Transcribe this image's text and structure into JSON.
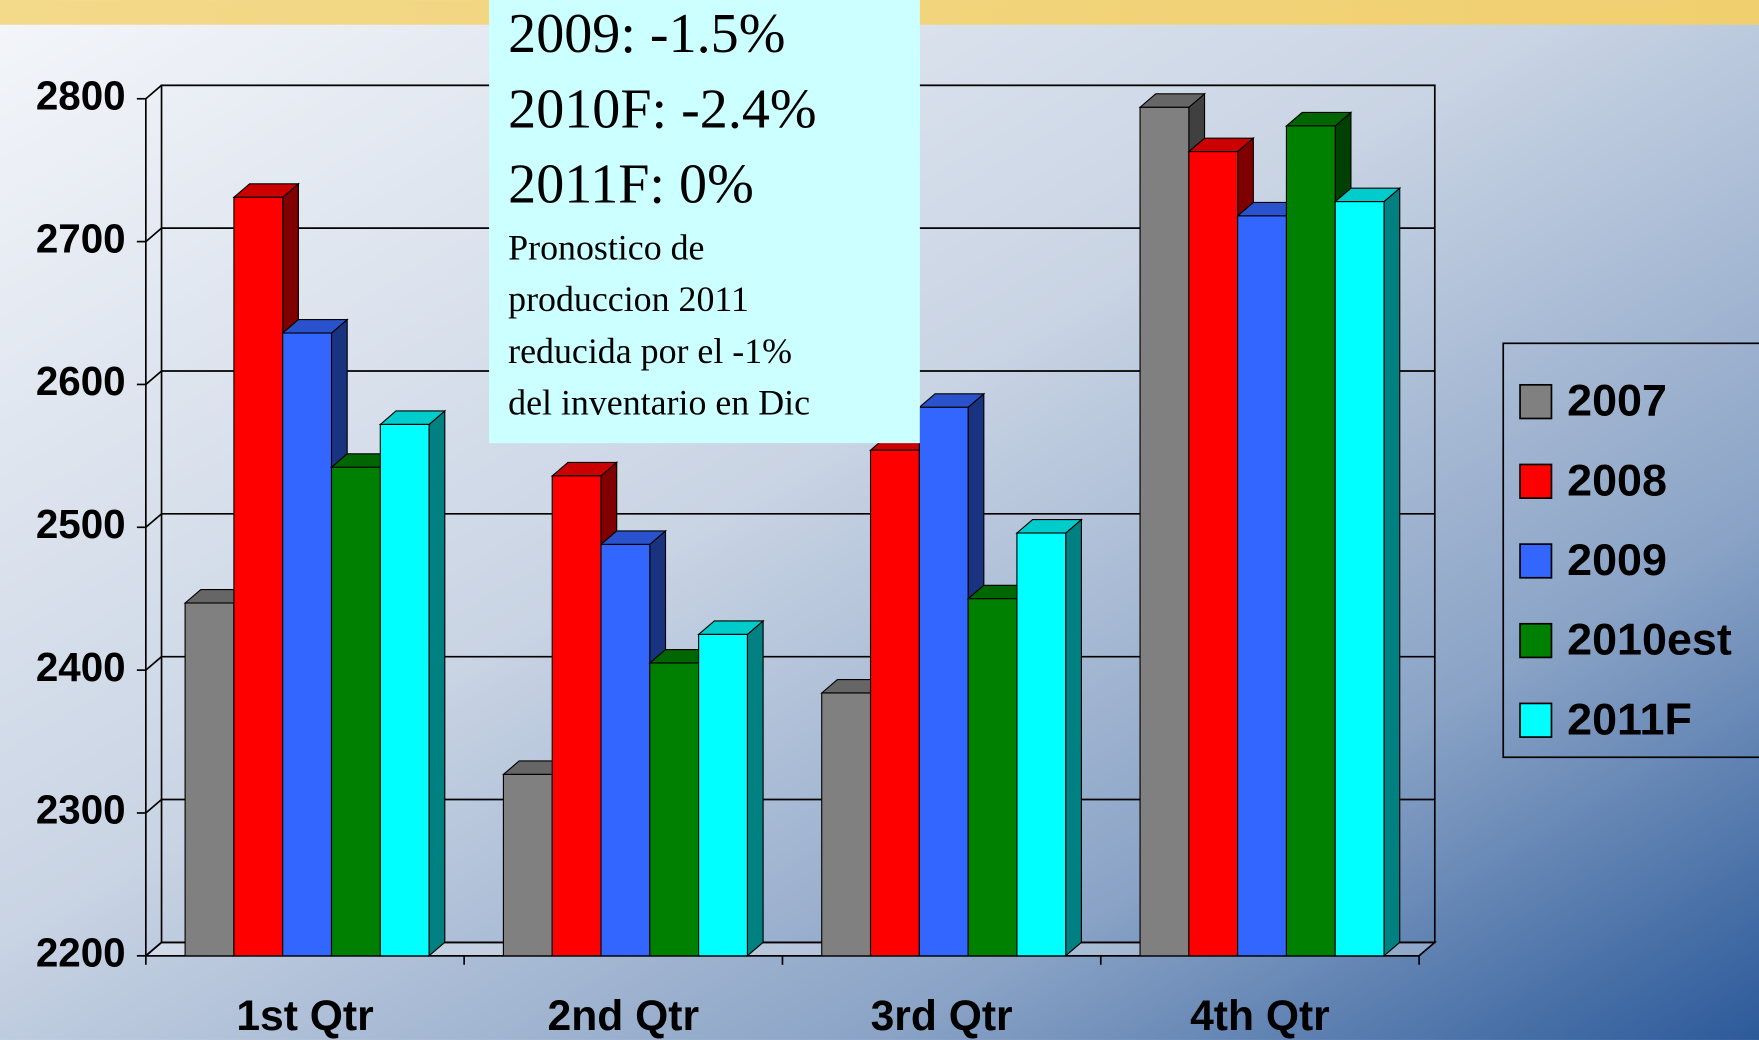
{
  "chart_data": {
    "type": "bar3d",
    "categories": [
      "1st Qtr",
      "2nd Qtr",
      "3rd Qtr",
      "4th Qtr"
    ],
    "series": [
      {
        "name": "2007",
        "color": "#808080",
        "values": [
          2447,
          2327,
          2384,
          2794
        ]
      },
      {
        "name": "2008",
        "color": "#ff0000",
        "values": [
          2731,
          2536,
          2554,
          2763
        ]
      },
      {
        "name": "2009",
        "color": "#3366ff",
        "values": [
          2636,
          2488,
          2584,
          2718
        ]
      },
      {
        "name": "2010est",
        "color": "#008000",
        "values": [
          2542,
          2405,
          2450,
          2781
        ]
      },
      {
        "name": "2011F",
        "color": "#00ffff",
        "values": [
          2572,
          2425,
          2496,
          2728
        ]
      }
    ],
    "ylim": [
      2200,
      2800
    ],
    "yticks": [
      2200,
      2300,
      2400,
      2500,
      2600,
      2700,
      2800
    ],
    "grid": true,
    "legend": "right",
    "annotations": [
      "2009: -1.5%",
      "2010F: -2.4%",
      "2011F: 0%"
    ],
    "note": [
      "Pronostico de",
      "produccion 2011",
      "reducida por el  -1%",
      "del inventario en Dic"
    ]
  }
}
